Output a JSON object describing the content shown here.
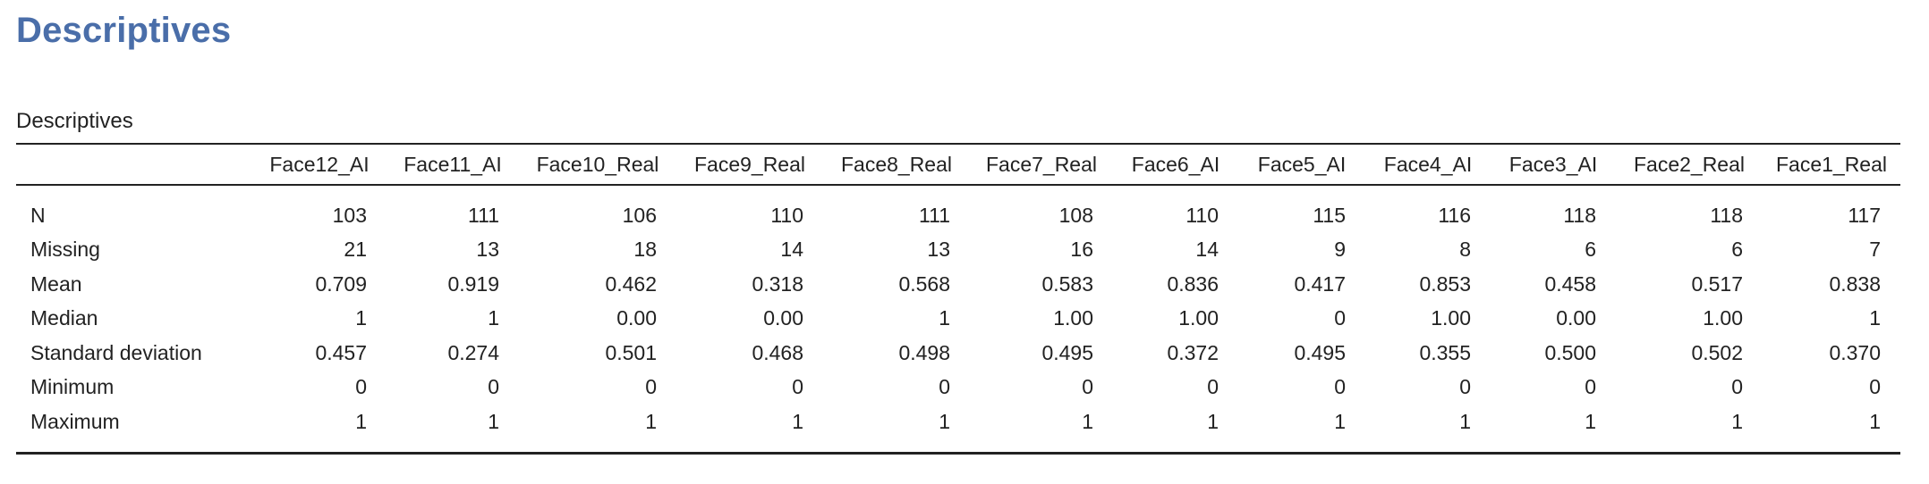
{
  "section": {
    "title": "Descriptives"
  },
  "table": {
    "caption": "Descriptives",
    "columns": [
      "Face12_AI",
      "Face11_AI",
      "Face10_Real",
      "Face9_Real",
      "Face8_Real",
      "Face7_Real",
      "Face6_AI",
      "Face5_AI",
      "Face4_AI",
      "Face3_AI",
      "Face2_Real",
      "Face1_Real"
    ],
    "rows": [
      {
        "label": "N",
        "values": [
          "103",
          "111",
          "106",
          "110",
          "111",
          "108",
          "110",
          "115",
          "116",
          "118",
          "118",
          "117"
        ]
      },
      {
        "label": "Missing",
        "values": [
          "21",
          "13",
          "18",
          "14",
          "13",
          "16",
          "14",
          "9",
          "8",
          "6",
          "6",
          "7"
        ]
      },
      {
        "label": "Mean",
        "values": [
          "0.709",
          "0.919",
          "0.462",
          "0.318",
          "0.568",
          "0.583",
          "0.836",
          "0.417",
          "0.853",
          "0.458",
          "0.517",
          "0.838"
        ]
      },
      {
        "label": "Median",
        "values": [
          "1",
          "1",
          "0.00",
          "0.00",
          "1",
          "1.00",
          "1.00",
          "0",
          "1.00",
          "0.00",
          "1.00",
          "1"
        ]
      },
      {
        "label": "Standard deviation",
        "values": [
          "0.457",
          "0.274",
          "0.501",
          "0.468",
          "0.498",
          "0.495",
          "0.372",
          "0.495",
          "0.355",
          "0.500",
          "0.502",
          "0.370"
        ]
      },
      {
        "label": "Minimum",
        "values": [
          "0",
          "0",
          "0",
          "0",
          "0",
          "0",
          "0",
          "0",
          "0",
          "0",
          "0",
          "0"
        ]
      },
      {
        "label": "Maximum",
        "values": [
          "1",
          "1",
          "1",
          "1",
          "1",
          "1",
          "1",
          "1",
          "1",
          "1",
          "1",
          "1"
        ]
      }
    ]
  }
}
